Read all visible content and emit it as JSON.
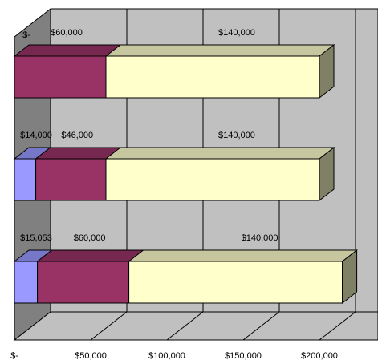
{
  "chart_data": {
    "type": "bar",
    "orientation": "horizontal-stacked-3d",
    "title": "",
    "xlabel": "",
    "ylabel": "",
    "xlim": [
      0,
      230000
    ],
    "x_ticks": [
      0,
      50000,
      100000,
      150000,
      200000
    ],
    "x_tick_labels": [
      "$-",
      "$50,000",
      "$100,000",
      "$150,000",
      "$200,000"
    ],
    "grid": true,
    "legend": "none",
    "rows": [
      {
        "segments": [
          {
            "value": 0,
            "label": "$-"
          },
          {
            "value": 60000,
            "label": "$60,000"
          },
          {
            "value": 140000,
            "label": "$140,000"
          }
        ]
      },
      {
        "segments": [
          {
            "value": 14000,
            "label": "$14,000"
          },
          {
            "value": 46000,
            "label": "$46,000"
          },
          {
            "value": 140000,
            "label": "$140,000"
          }
        ]
      },
      {
        "segments": [
          {
            "value": 15053,
            "label": "$15,053"
          },
          {
            "value": 60000,
            "label": "$60,000"
          },
          {
            "value": 140000,
            "label": "$140,000"
          }
        ]
      }
    ],
    "colors": {
      "segments": [
        "#9999ff",
        "#993366",
        "#ffffcc"
      ],
      "wall": "#c0c0c0",
      "side_wall": "#808080",
      "floor": "#c0c0c0",
      "gridline": "#000000"
    }
  }
}
